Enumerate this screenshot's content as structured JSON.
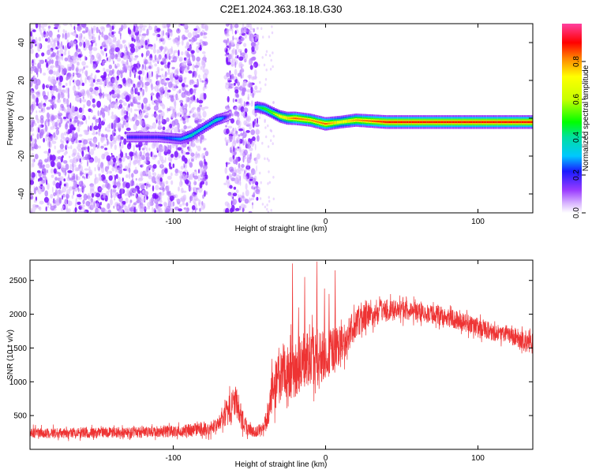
{
  "title": "C2E1.2024.363.18.18.G30",
  "chart_data": [
    {
      "type": "heatmap",
      "title": "C2E1.2024.363.18.18.G30",
      "xlabel": "Height of straight line (km)",
      "ylabel": "Frequency (Hz)",
      "xlim": [
        -194,
        136
      ],
      "ylim": [
        -50,
        50
      ],
      "xticks": [
        -100,
        0,
        100
      ],
      "yticks": [
        -40,
        -20,
        0,
        20,
        40
      ],
      "colorbar": {
        "label": "Normalized spectral amplitude",
        "range": [
          0,
          1
        ],
        "ticks": [
          0.0,
          0.2,
          0.4,
          0.6,
          0.8
        ]
      },
      "noise_regions_km": [
        [
          -194,
          -78
        ],
        [
          -66,
          -44
        ]
      ],
      "ridge": {
        "description": "frequency of peak spectral amplitude vs height",
        "x": [
          -130,
          -110,
          -95,
          -88,
          -82,
          -76,
          -72,
          -68,
          -64,
          -60,
          -55,
          -50,
          -45,
          -40,
          -35,
          -30,
          -25,
          -20,
          -10,
          0,
          10,
          20,
          40,
          60,
          80,
          100,
          120,
          136
        ],
        "y": [
          -10,
          -10,
          -11,
          -9,
          -6,
          -3,
          -1,
          0,
          1,
          3,
          4,
          5,
          6,
          5,
          3,
          1,
          0,
          0,
          -1,
          -3,
          -2,
          -1,
          -2,
          -2,
          -2,
          -2,
          -2,
          -2
        ],
        "amplitude": [
          0.2,
          0.2,
          0.3,
          0.4,
          0.35,
          0.35,
          0.4,
          0.3,
          0.15,
          0.1,
          0.15,
          0.25,
          0.4,
          0.5,
          0.55,
          0.7,
          0.75,
          0.85,
          0.8,
          0.85,
          0.7,
          0.8,
          0.9,
          0.9,
          0.9,
          0.9,
          0.9,
          0.9
        ]
      }
    },
    {
      "type": "line",
      "xlabel": "Height of straight line (km)",
      "ylabel": "SNR (10 * v/v)",
      "xlim": [
        -194,
        136
      ],
      "ylim": [
        0,
        2800
      ],
      "xticks": [
        -100,
        0,
        100
      ],
      "yticks": [
        500,
        1000,
        1500,
        2000,
        2500
      ],
      "series": [
        {
          "name": "SNR",
          "color": "#ee3333",
          "x": [
            -194,
            -180,
            -160,
            -140,
            -120,
            -100,
            -90,
            -80,
            -72,
            -68,
            -64,
            -60,
            -57,
            -54,
            -50,
            -46,
            -42,
            -38,
            -35,
            -32,
            -28,
            -24,
            -20,
            -15,
            -10,
            -5,
            0,
            5,
            10,
            15,
            20,
            25,
            30,
            40,
            50,
            60,
            70,
            80,
            90,
            100,
            110,
            120,
            130,
            136
          ],
          "y": [
            240,
            240,
            245,
            250,
            255,
            265,
            280,
            300,
            340,
            420,
            560,
            720,
            600,
            380,
            280,
            260,
            290,
            450,
            900,
            1000,
            1150,
            1120,
            1200,
            1300,
            1320,
            1350,
            1400,
            1450,
            1550,
            1700,
            1850,
            1960,
            2000,
            2050,
            2060,
            2040,
            2000,
            1950,
            1880,
            1800,
            1730,
            1680,
            1620,
            1600
          ],
          "noise": [
            80,
            80,
            80,
            80,
            85,
            90,
            95,
            105,
            120,
            150,
            200,
            260,
            230,
            140,
            90,
            80,
            100,
            160,
            340,
            380,
            420,
            430,
            450,
            430,
            420,
            400,
            380,
            360,
            300,
            260,
            220,
            200,
            180,
            160,
            150,
            150,
            145,
            140,
            140,
            135,
            130,
            130,
            130,
            130
          ]
        }
      ],
      "spikes": [
        {
          "x": -22,
          "y": 2750
        },
        {
          "x": -14,
          "y": 2550
        },
        {
          "x": -6,
          "y": 2780
        },
        {
          "x": 6,
          "y": 2650
        },
        {
          "x": -1,
          "y": 2380
        },
        {
          "x": 2,
          "y": 2300
        },
        {
          "x": -18,
          "y": 2100
        }
      ]
    }
  ]
}
